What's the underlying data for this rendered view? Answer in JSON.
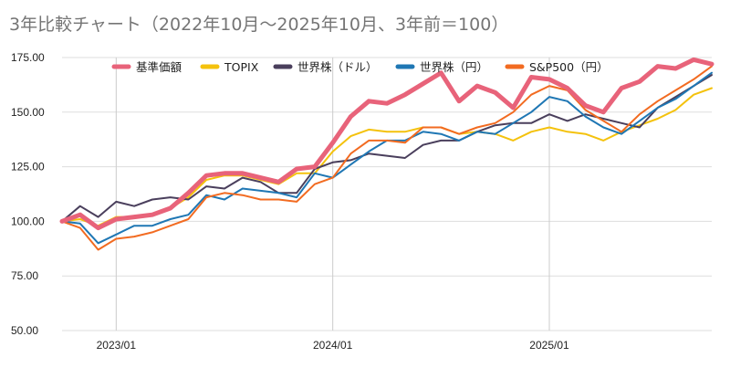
{
  "chart_data": {
    "type": "line",
    "title": "3年比較チャート（2022年10月～2025年10月、3年前＝100）",
    "xlabel": "",
    "ylabel": "",
    "ylim": [
      50,
      175
    ],
    "yticks": [
      "50.00",
      "75.00",
      "100.00",
      "125.00",
      "150.00",
      "175.00"
    ],
    "ytick_values": [
      50,
      75,
      100,
      125,
      150,
      175
    ],
    "xticks": [
      {
        "label": "2023/01",
        "index": 3
      },
      {
        "label": "2024/01",
        "index": 15
      },
      {
        "label": "2025/01",
        "index": 27
      }
    ],
    "x": [
      "2022/10",
      "2022/11",
      "2022/12",
      "2023/01",
      "2023/02",
      "2023/03",
      "2023/04",
      "2023/05",
      "2023/06",
      "2023/07",
      "2023/08",
      "2023/09",
      "2023/10",
      "2023/11",
      "2023/12",
      "2024/01",
      "2024/02",
      "2024/03",
      "2024/04",
      "2024/05",
      "2024/06",
      "2024/07",
      "2024/08",
      "2024/09",
      "2024/10",
      "2024/11",
      "2024/12",
      "2025/01",
      "2025/02",
      "2025/03",
      "2025/04",
      "2025/05",
      "2025/06",
      "2025/07",
      "2025/08",
      "2025/09",
      "2025/10"
    ],
    "legend_position": "top",
    "grid": true,
    "series": [
      {
        "name": "基準価額",
        "color": "#e8637a",
        "width": 5,
        "values": [
          100,
          103,
          97,
          101,
          102,
          103,
          106,
          113,
          121,
          122,
          122,
          120,
          118,
          124,
          125,
          136,
          148,
          155,
          154,
          158,
          163,
          168,
          155,
          162,
          159,
          152,
          166,
          165,
          161,
          153,
          150,
          161,
          164,
          171,
          170,
          174,
          172
        ]
      },
      {
        "name": "TOPIX",
        "color": "#f4c20d",
        "width": 2,
        "values": [
          100,
          101,
          98,
          102,
          102,
          103,
          106,
          111,
          119,
          121,
          121,
          119,
          117,
          122,
          122,
          132,
          139,
          142,
          141,
          141,
          143,
          143,
          140,
          141,
          140,
          137,
          141,
          143,
          141,
          140,
          137,
          141,
          144,
          147,
          151,
          158,
          161
        ]
      },
      {
        "name": "世界株（ドル）",
        "color": "#4a3f5c",
        "width": 2,
        "values": [
          100,
          107,
          102,
          109,
          107,
          110,
          111,
          110,
          116,
          115,
          120,
          118,
          113,
          113,
          124,
          127,
          128,
          131,
          130,
          129,
          135,
          137,
          137,
          141,
          144,
          145,
          145,
          149,
          146,
          149,
          147,
          145,
          143,
          152,
          157,
          162,
          167
        ]
      },
      {
        "name": "世界株（円）",
        "color": "#1f77b4",
        "width": 2,
        "values": [
          100,
          99,
          90,
          94,
          98,
          98,
          101,
          103,
          112,
          110,
          115,
          114,
          113,
          111,
          122,
          120,
          126,
          132,
          137,
          137,
          141,
          140,
          137,
          141,
          140,
          145,
          150,
          157,
          155,
          148,
          143,
          140,
          146,
          152,
          156,
          162,
          168
        ]
      },
      {
        "name": "S&P500（円）",
        "color": "#f26b21",
        "width": 2,
        "values": [
          100,
          97,
          87,
          92,
          93,
          95,
          98,
          101,
          111,
          113,
          112,
          110,
          110,
          109,
          117,
          120,
          131,
          137,
          137,
          136,
          143,
          143,
          140,
          143,
          145,
          150,
          158,
          162,
          160,
          151,
          146,
          141,
          149,
          155,
          160,
          165,
          171
        ]
      }
    ]
  }
}
